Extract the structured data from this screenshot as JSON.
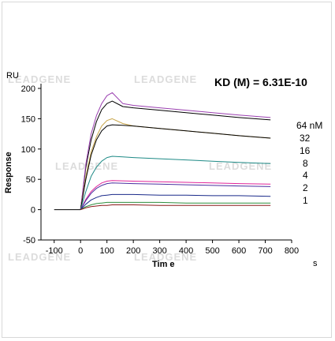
{
  "chart_data": {
    "type": "line",
    "y_unit": "RU",
    "ylabel": "Response",
    "xlabel": "Tim e",
    "x_unit": "s",
    "annotation": "KD (M) = 6.31E-10",
    "xlim": [
      -150,
      800
    ],
    "ylim": [
      -50,
      200
    ],
    "xticks": [
      -100,
      0,
      100,
      200,
      300,
      400,
      500,
      600,
      700,
      800
    ],
    "yticks": [
      -50,
      0,
      50,
      100,
      150,
      200
    ],
    "grid": false,
    "legend_labels": [
      "64 nM",
      "32",
      "16",
      "8",
      "4",
      "2",
      "1"
    ],
    "baseline": {
      "x": [
        -100,
        0
      ],
      "y": [
        0,
        0
      ],
      "color": "#000000"
    },
    "series": [
      {
        "label": "64 nM",
        "color": "#000000",
        "x": [
          0,
          20,
          40,
          60,
          80,
          100,
          120,
          160,
          200,
          300,
          400,
          500,
          600,
          720
        ],
        "y": [
          0,
          70,
          115,
          145,
          165,
          175,
          179,
          170,
          168,
          164,
          160,
          156,
          152,
          148
        ]
      },
      {
        "label": "64 nM",
        "color": "#9a3fb0",
        "x": [
          0,
          20,
          40,
          60,
          80,
          100,
          120,
          160,
          200,
          300,
          400,
          500,
          600,
          720
        ],
        "y": [
          0,
          75,
          125,
          155,
          175,
          188,
          193,
          175,
          172,
          168,
          164,
          160,
          156,
          152
        ]
      },
      {
        "label": "32",
        "color": "#c8a54a",
        "x": [
          0,
          20,
          40,
          60,
          80,
          100,
          120,
          160,
          200,
          300,
          400,
          500,
          600,
          720
        ],
        "y": [
          0,
          55,
          95,
          120,
          138,
          147,
          150,
          142,
          138,
          134,
          130,
          126,
          122,
          118
        ]
      },
      {
        "label": "32",
        "color": "#000000",
        "x": [
          0,
          20,
          40,
          60,
          80,
          100,
          120,
          160,
          200,
          300,
          400,
          500,
          600,
          720
        ],
        "y": [
          0,
          50,
          90,
          115,
          130,
          138,
          140,
          139,
          138,
          134,
          130,
          126,
          122,
          118
        ]
      },
      {
        "label": "16",
        "color": "#1e8a86",
        "x": [
          0,
          20,
          40,
          60,
          80,
          100,
          120,
          160,
          200,
          300,
          400,
          500,
          600,
          720
        ],
        "y": [
          0,
          30,
          55,
          70,
          80,
          86,
          88,
          87,
          86,
          84,
          82,
          80,
          78,
          76
        ]
      },
      {
        "label": "8",
        "color": "#e0249a",
        "x": [
          0,
          20,
          40,
          60,
          80,
          100,
          120,
          200,
          300,
          400,
          500,
          600,
          720
        ],
        "y": [
          0,
          17,
          30,
          38,
          44,
          47,
          48,
          47,
          46,
          45,
          44,
          43,
          42
        ]
      },
      {
        "label": "8",
        "color": "#4b2fa0",
        "x": [
          0,
          20,
          40,
          60,
          80,
          100,
          120,
          200,
          300,
          400,
          500,
          600,
          720
        ],
        "y": [
          0,
          15,
          27,
          35,
          40,
          43,
          44,
          43,
          42,
          41,
          40,
          39,
          38
        ]
      },
      {
        "label": "4",
        "color": "#1a2a8a",
        "x": [
          0,
          20,
          40,
          60,
          80,
          100,
          120,
          200,
          300,
          400,
          500,
          600,
          720
        ],
        "y": [
          0,
          9,
          16,
          20,
          23,
          24,
          25,
          25,
          24,
          24,
          23,
          23,
          22
        ]
      },
      {
        "label": "2",
        "color": "#2f8f3f",
        "x": [
          0,
          20,
          40,
          60,
          80,
          100,
          120,
          200,
          300,
          400,
          500,
          600,
          720
        ],
        "y": [
          0,
          5,
          8,
          10,
          11,
          12,
          12,
          12,
          12,
          11,
          11,
          11,
          11
        ]
      },
      {
        "label": "1",
        "color": "#8a1a1a",
        "x": [
          0,
          20,
          40,
          60,
          80,
          100,
          120,
          200,
          300,
          400,
          500,
          600,
          720
        ],
        "y": [
          0,
          3,
          5,
          6,
          7,
          7,
          8,
          8,
          7,
          7,
          7,
          7,
          7
        ]
      }
    ]
  },
  "watermark": {
    "text": "LEADGENE"
  }
}
